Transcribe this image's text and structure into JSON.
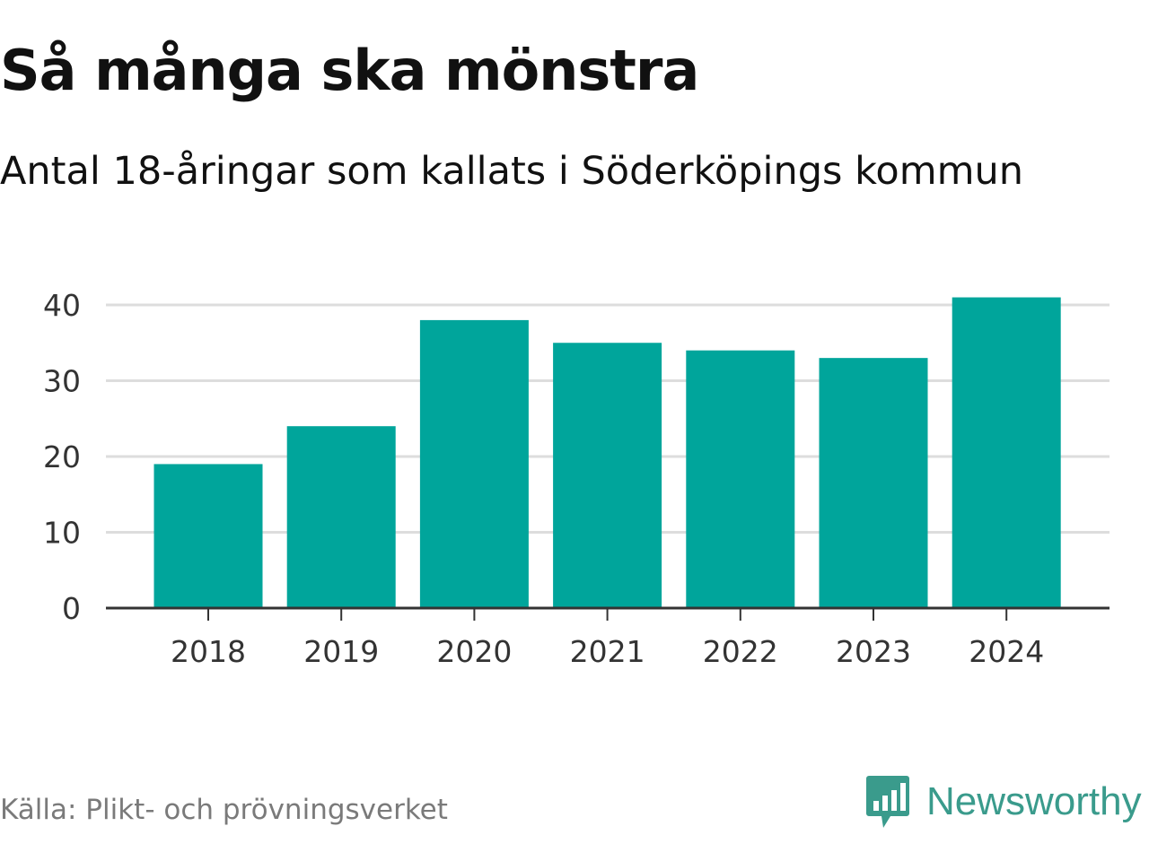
{
  "header": {
    "title": "Så många ska mönstra",
    "subtitle": "Antal 18-åringar som kallats i Söderköpings kommun"
  },
  "footer": {
    "source": "Källa: Plikt- och prövningsverket",
    "brand": "Newsworthy",
    "brand_icon": "newsworthy-logo-icon"
  },
  "colors": {
    "bar": "#00a59b",
    "grid": "#dddddd",
    "axis": "#333333",
    "brand": "#3a9b8c"
  },
  "chart_data": {
    "type": "bar",
    "categories": [
      "2018",
      "2019",
      "2020",
      "2021",
      "2022",
      "2023",
      "2024"
    ],
    "values": [
      19,
      24,
      38,
      35,
      34,
      33,
      41
    ],
    "ylim": [
      0,
      45
    ],
    "yticks": [
      0,
      10,
      20,
      30,
      40
    ],
    "grid": true,
    "legend": "none"
  }
}
